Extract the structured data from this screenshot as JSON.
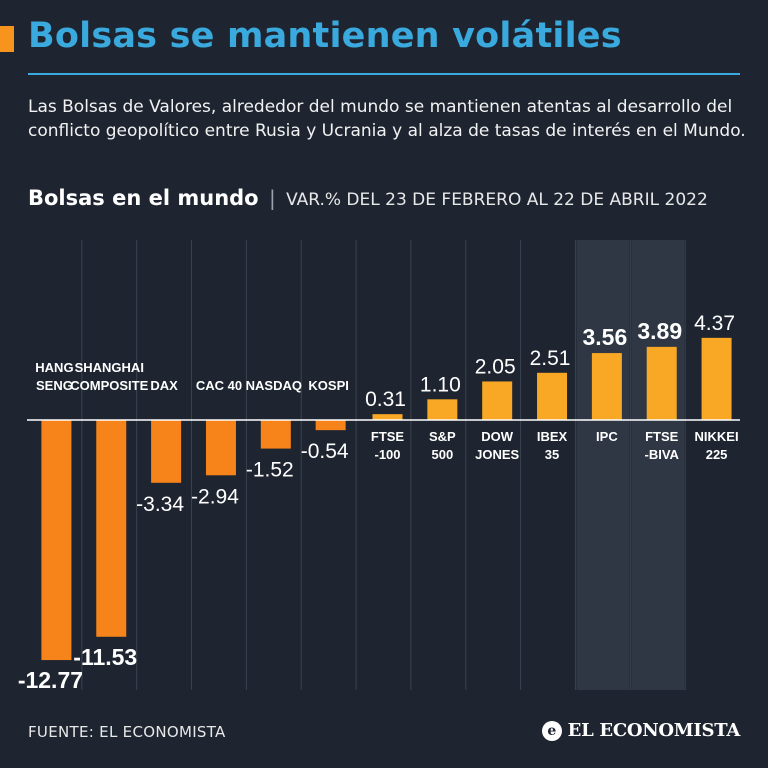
{
  "header": {
    "title": "Bolsas se mantienen volátiles",
    "description": "Las Bolsas de Valores, alrededor del mundo se mantienen atentas al desarrollo del conflicto geopolítico entre Rusia y Ucrania y al alza de tasas de interés en el Mundo.",
    "subtitle_bold": "Bolsas en el mundo",
    "subtitle_separator": "|",
    "subtitle_light": "VAR.% DEL 23 DE FEBRERO AL 22 DE ABRIL 2022"
  },
  "footer": {
    "source": "FUENTE: EL ECONOMISTA",
    "logo_text": "EL ECONOMISTA",
    "logo_mark": "e"
  },
  "colors": {
    "background": "#1e2531",
    "title": "#3aa9dd",
    "accent": "#f7941d",
    "negative_bar": "#f7841a",
    "positive_bar": "#f9a825",
    "highlight_column": "#2f3744"
  },
  "chart_data": {
    "type": "bar",
    "title": "Bolsas en el mundo",
    "subtitle": "VAR.% DEL 23 DE FEBRERO AL 22 DE ABRIL 2022",
    "xlabel": "",
    "ylabel": "",
    "ylim": [
      -12.77,
      4.37
    ],
    "grid": false,
    "categories": [
      [
        "HANG",
        "SENG"
      ],
      [
        "SHANGHAI",
        "COMPOSITE"
      ],
      [
        "DAX"
      ],
      [
        "CAC 40"
      ],
      [
        "NASDAQ"
      ],
      [
        "KOSPI"
      ],
      [
        "FTSE",
        "-100"
      ],
      [
        "S&P",
        "500"
      ],
      [
        "DOW",
        "JONES"
      ],
      [
        "IBEX",
        "35"
      ],
      [
        "IPC"
      ],
      [
        "FTSE",
        "-BIVA"
      ],
      [
        "NIKKEI",
        "225"
      ]
    ],
    "values": [
      -12.77,
      -11.53,
      -3.34,
      -2.94,
      -1.52,
      -0.54,
      0.31,
      1.1,
      2.05,
      2.51,
      3.56,
      3.89,
      4.37
    ],
    "value_labels": [
      "-12.77",
      "-11.53",
      "-3.34",
      "-2.94",
      "-1.52",
      "-0.54",
      "0.31",
      "1.10",
      "2.05",
      "2.51",
      "3.56",
      "3.89",
      "4.37"
    ],
    "bold_labels": [
      true,
      true,
      false,
      false,
      false,
      false,
      false,
      false,
      false,
      false,
      true,
      true,
      false
    ],
    "highlighted": [
      false,
      false,
      false,
      false,
      false,
      false,
      false,
      false,
      false,
      false,
      true,
      true,
      false
    ]
  }
}
